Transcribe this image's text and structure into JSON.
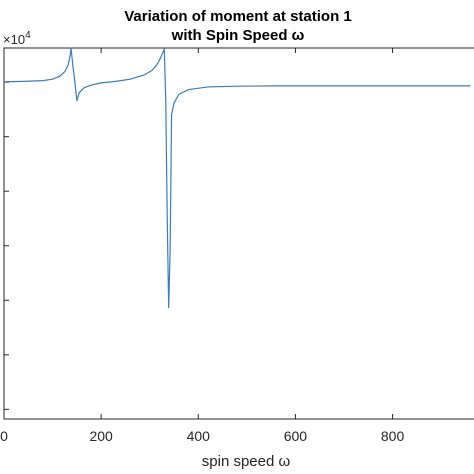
{
  "chart_data": {
    "type": "line",
    "title": [
      "Variation of moment at station 1",
      "with Spin Speed ω"
    ],
    "xlabel": "spin speed ω",
    "ylabel": "",
    "y_exponent_label": "×10",
    "y_exponent_power": "4",
    "xlim": [
      0,
      960
    ],
    "xticks": [
      0,
      200,
      400,
      600,
      800
    ],
    "xtick_labels": [
      "0",
      "200",
      "400",
      "600",
      "800"
    ],
    "yticks_relative": [
      0.092,
      0.239,
      0.386,
      0.533,
      0.68,
      0.827,
      0.974
    ],
    "grid": false,
    "legend": "none",
    "line_color": "#3a7db8",
    "series": [
      {
        "x": [
          0,
          40,
          80,
          100,
          115,
          125,
          132,
          136,
          138,
          142,
          146,
          150,
          155,
          165,
          180,
          200,
          230,
          260,
          290,
          305,
          315,
          322,
          326,
          330,
          333,
          336,
          339,
          342,
          345,
          350,
          360,
          380,
          420,
          480,
          560,
          660,
          760,
          860,
          960
        ],
        "y": [
          0.091,
          0.09,
          0.088,
          0.084,
          0.076,
          0.064,
          0.046,
          0.021,
          0.0,
          0.05,
          0.092,
          0.142,
          0.12,
          0.107,
          0.1,
          0.094,
          0.09,
          0.084,
          0.072,
          0.06,
          0.045,
          0.028,
          0.015,
          0.003,
          0.14,
          0.45,
          0.7,
          0.55,
          0.18,
          0.148,
          0.125,
          0.112,
          0.105,
          0.103,
          0.102,
          0.102,
          0.102,
          0.102,
          0.102
        ]
      }
    ]
  }
}
